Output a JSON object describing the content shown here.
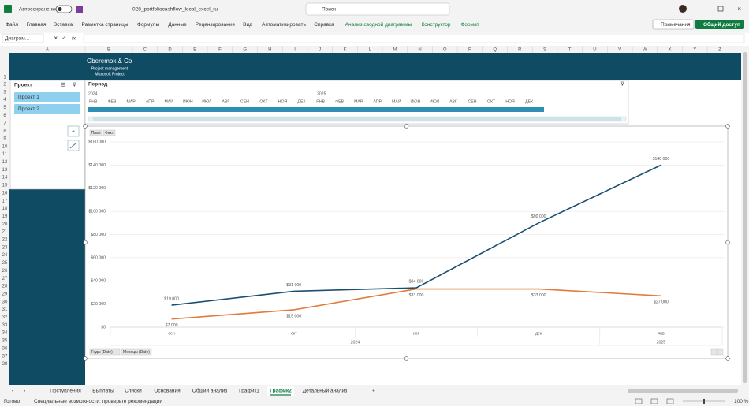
{
  "title_bar": {
    "autosave": "Автосохранение",
    "filename": "028_portfoliocashflow_local_excel_ru",
    "search": "Поиск"
  },
  "ribbon": {
    "tabs": [
      "Файл",
      "Главная",
      "Вставка",
      "Разметка страницы",
      "Формулы",
      "Данные",
      "Рецензирование",
      "Вид",
      "Автоматизировать",
      "Справка",
      "Анализ сводной диаграммы",
      "Конструктор",
      "Формат"
    ],
    "comments": "Примечания",
    "share": "Общий доступ"
  },
  "formula_bar": {
    "name_box": "Диаграм...",
    "fx": "fx"
  },
  "columns": [
    "A",
    "B",
    "C",
    "D",
    "E",
    "F",
    "G",
    "H",
    "I",
    "J",
    "K",
    "L",
    "M",
    "N",
    "O",
    "P",
    "Q",
    "R",
    "S",
    "T",
    "U",
    "V",
    "W",
    "X",
    "Y",
    "Z"
  ],
  "rows": [
    1,
    2,
    3,
    4,
    5,
    6,
    7,
    8,
    9,
    10,
    11,
    12,
    13,
    14,
    15,
    16,
    17,
    18,
    19,
    20,
    21,
    22,
    23,
    24,
    25,
    26,
    27,
    28,
    29,
    30,
    31,
    32,
    33,
    34,
    35,
    36,
    37,
    38
  ],
  "banner": {
    "company": "Oberemok & Co",
    "line1": "Project management",
    "line2": "Microsoft Project"
  },
  "slicer": {
    "title": "Проект",
    "items": [
      "Проект 1",
      "Проект 2"
    ]
  },
  "timeline": {
    "title": "Период",
    "years": [
      "2024",
      "2025"
    ],
    "months": [
      "ЯНВ",
      "ФЕВ",
      "МАР",
      "АПР",
      "МАЙ",
      "ИЮН",
      "ИЮЛ",
      "АВГ",
      "СЕН",
      "ОКТ",
      "НОЯ",
      "ДЕК",
      "ЯНВ",
      "ФЕВ",
      "МАР",
      "АПР",
      "МАЙ",
      "ИЮН",
      "ИЮЛ",
      "АВГ",
      "СЕН",
      "ОКТ",
      "НОЯ",
      "ДЕК"
    ]
  },
  "chart_data": {
    "type": "line",
    "categories": [
      "сен",
      "окт",
      "ноя",
      "дек",
      "янв"
    ],
    "category_groups": [
      "2024",
      "2025"
    ],
    "series": [
      {
        "name": "План",
        "color": "#1b4f72",
        "values": [
          19000,
          31000,
          34000,
          90000,
          140000
        ],
        "value_labels": [
          "$19 000",
          "$31 000",
          "$34 000",
          "$90 000",
          "$140 000"
        ]
      },
      {
        "name": "Факт",
        "color": "#e07b39",
        "values": [
          7000,
          15000,
          33000,
          33000,
          27000
        ],
        "value_labels": [
          "$7 000",
          "$15 000",
          "$33 000",
          "$33 000",
          "$27 000"
        ]
      }
    ],
    "ylim": [
      0,
      160000
    ],
    "yticks": [
      {
        "value": 0,
        "label": "$0"
      },
      {
        "value": 20000,
        "label": "$20 000"
      },
      {
        "value": 40000,
        "label": "$40 000"
      },
      {
        "value": 60000,
        "label": "$60 000"
      },
      {
        "value": 80000,
        "label": "$80 000"
      },
      {
        "value": 100000,
        "label": "$100 000"
      },
      {
        "value": 120000,
        "label": "$120 000"
      },
      {
        "value": 140000,
        "label": "$140 000"
      },
      {
        "value": 160000,
        "label": "$160 000"
      }
    ],
    "grid": true,
    "field_buttons": [
      "Годы (Date)",
      "Месяцы (Date)"
    ]
  },
  "sheet_tabs": {
    "tabs": [
      "Поступления",
      "Выплаты",
      "Списки",
      "Основания",
      "Общий анализ",
      "График1",
      "График2",
      "Детальный анализ"
    ],
    "active": "График2"
  },
  "status_bar": {
    "ready": "Готово",
    "accessibility": "Специальные возможности: проверьте рекомендации",
    "zoom": "100 %"
  }
}
